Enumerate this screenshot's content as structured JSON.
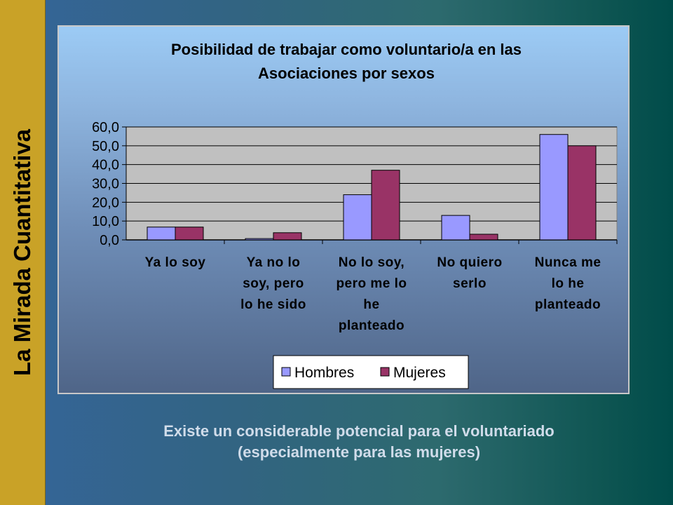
{
  "side_title": "La Mirada Cuantitativa",
  "caption": {
    "line1": "Existe un considerable potencial para el voluntariado",
    "line2": "(especialmente para las mujeres)"
  },
  "chart_data": {
    "type": "bar",
    "title": [
      "Posibilidad de trabajar como voluntario/a en las",
      "Asociaciones por sexos"
    ],
    "categories": [
      [
        "Ya lo soy"
      ],
      [
        "Ya no lo",
        "soy, pero",
        "lo he sido"
      ],
      [
        "No lo soy,",
        "pero me lo",
        "he",
        "planteado"
      ],
      [
        "No quiero",
        "serlo"
      ],
      [
        "Nunca me",
        "lo he",
        "planteado"
      ]
    ],
    "series": [
      {
        "name": "Hombres",
        "values": [
          6.8,
          0.7,
          24.0,
          13.0,
          56.0
        ],
        "color": "#9999ff"
      },
      {
        "name": "Mujeres",
        "values": [
          6.8,
          3.8,
          37.0,
          3.0,
          50.0
        ],
        "color": "#993366"
      }
    ],
    "ylim": [
      0,
      60
    ],
    "yticks": [
      "0,0",
      "10,0",
      "20,0",
      "30,0",
      "40,0",
      "50,0",
      "60,0"
    ],
    "plot_bg": "#c0c0c0",
    "legend_position": "bottom",
    "grid": true
  }
}
